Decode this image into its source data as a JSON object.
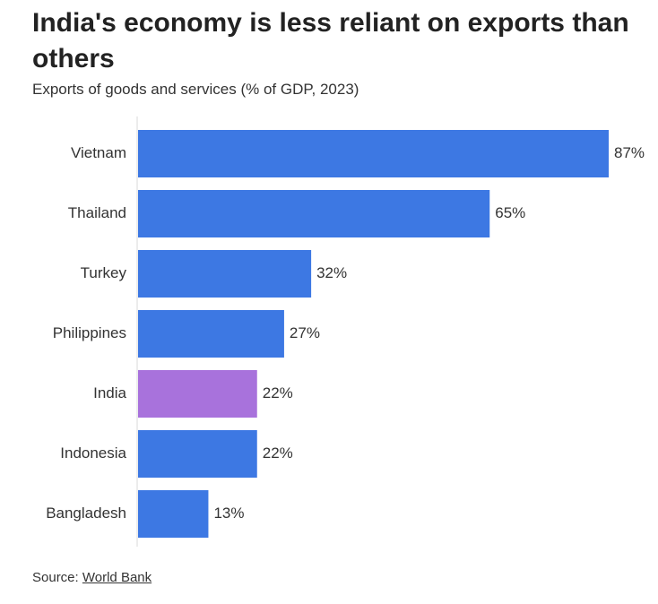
{
  "header": {
    "title": "India's economy is less reliant on exports than others",
    "subtitle": "Exports of goods and services (% of GDP, 2023)"
  },
  "footer": {
    "source_label": "Source:",
    "source_link": "World Bank"
  },
  "colors": {
    "bar_default": "#3d78e3",
    "bar_highlight": "#a872dc",
    "axis_line": "#d9d9d9",
    "text": "#333333"
  },
  "chart_data": {
    "type": "bar",
    "orientation": "horizontal",
    "categories": [
      "Vietnam",
      "Thailand",
      "Turkey",
      "Philippines",
      "India",
      "Indonesia",
      "Bangladesh"
    ],
    "values": [
      87,
      65,
      32,
      27,
      22,
      22,
      13
    ],
    "data_labels": [
      "87%",
      "65%",
      "32%",
      "27%",
      "22%",
      "22%",
      "13%"
    ],
    "highlight": "India",
    "xlim": [
      0,
      87
    ],
    "grid": false,
    "legend": "none"
  }
}
